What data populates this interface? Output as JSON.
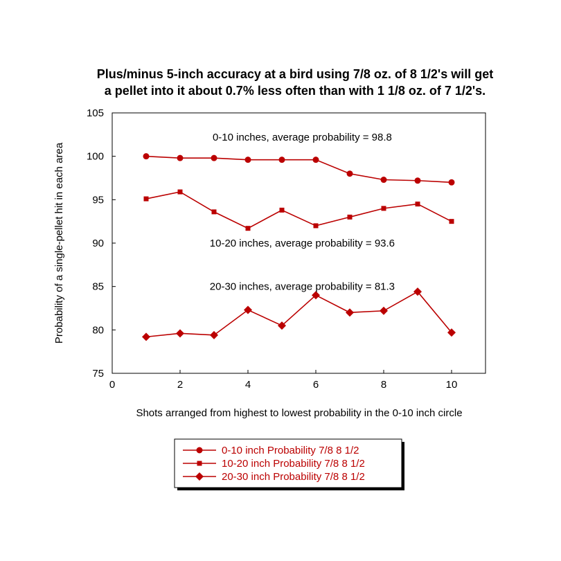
{
  "chart_data": {
    "type": "line",
    "title_lines": [
      "Plus/minus 5-inch accuracy at a bird using 7/8 oz. of 8 1/2's will get",
      "a pellet into it about 0.7% less often than with 1 1/8 oz. of 7 1/2's."
    ],
    "xlabel": "Shots arranged from  highest to lowest probability in the 0-10 inch circle",
    "ylabel": "Probability of a single-pellet hit in each area",
    "xlim": [
      0,
      11
    ],
    "ylim": [
      75,
      105
    ],
    "xticks": [
      0,
      2,
      4,
      6,
      8,
      10
    ],
    "yticks": [
      75,
      80,
      85,
      90,
      95,
      100,
      105
    ],
    "grid": false,
    "legend_placement": "bottom-center",
    "x": [
      1,
      2,
      3,
      4,
      5,
      6,
      7,
      8,
      9,
      10
    ],
    "series": [
      {
        "name": "0-10 inch Probability 7/8  8 1/2",
        "marker": "circle",
        "color": "#bb0000",
        "values": [
          100.0,
          99.8,
          99.8,
          99.6,
          99.6,
          99.6,
          98.0,
          97.3,
          97.2,
          97.0
        ]
      },
      {
        "name": "10-20 inch Probability 7/8  8 1/2",
        "marker": "square",
        "color": "#bb0000",
        "values": [
          95.1,
          95.9,
          93.6,
          91.7,
          93.8,
          92.0,
          93.0,
          94.0,
          94.5,
          92.5
        ]
      },
      {
        "name": "20-30 inch Probability 7/8  8 1/2",
        "marker": "diamond",
        "color": "#bb0000",
        "values": [
          79.2,
          79.6,
          79.4,
          82.3,
          80.5,
          84.0,
          82.0,
          82.2,
          84.4,
          79.7
        ]
      }
    ],
    "annotations": [
      {
        "text": "0-10 inches, average probability = 98.8",
        "x": 5.6,
        "y": 102.2
      },
      {
        "text": "10-20 inches, average probability = 93.6",
        "x": 5.6,
        "y": 90.0
      },
      {
        "text": "20-30 inches, average probability = 81.3",
        "x": 5.6,
        "y": 85.0
      }
    ]
  }
}
